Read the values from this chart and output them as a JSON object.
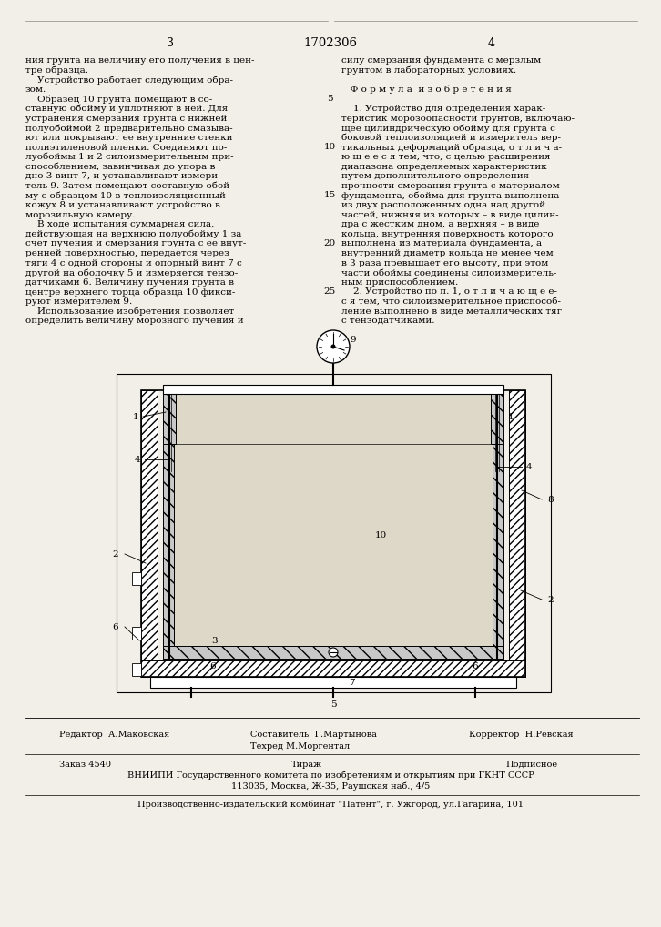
{
  "bg_color": "#f2efe8",
  "page_width": 7.07,
  "page_height": 10.0,
  "header": {
    "left_page_num": "3",
    "center_patent": "1702306",
    "right_page_num": "4"
  },
  "left_col_lines": [
    "ния грунта на величину его получения в цен-",
    "тре образца.",
    "    Устройство работает следующим обра-",
    "зом.",
    "    Образец 10 грунта помещают в со-",
    "ставную обойму и уплотняют в ней. Для",
    "устранения смерзания грунта с нижней",
    "полуобоймой 2 предварительно смазыва-",
    "ют или покрывают ее внутренние стенки",
    "полиэтиленовой пленки. Соединяют по-",
    "луобоймы 1 и 2 силоизмерительным при-",
    "способлением, завинчивая до упора в",
    "дно 3 винт 7, и устанавливают измери-",
    "тель 9. Затем помещают составную обой-",
    "му с образцом 10 в теплоизоляционный",
    "кожух 8 и устанавливают устройство в",
    "морозильную камеру.",
    "    В ходе испытания суммарная сила,",
    "действующая на верхнюю полуобойму 1 за",
    "счет пучения и смерзания грунта с ее внут-",
    "ренней поверхностью, передается через",
    "тяги 4 с одной стороны и опорный винт 7 с",
    "другой на оболочку 5 и измеряется тензо-",
    "датчиками 6. Величину пучения грунта в",
    "центре верхнего торца образца 10 фикси-",
    "руют измерителем 9.",
    "    Использование изобретения позволяет",
    "определить величину морозного пучения и"
  ],
  "line_numbers": [
    5,
    10,
    15,
    20,
    25
  ],
  "line_number_rows": [
    4,
    9,
    14,
    19,
    24
  ],
  "right_col_lines": [
    "силу смерзания фундамента с мерзлым",
    "грунтом в лабораторных условиях.",
    "",
    "   Ф о р м у л а  и з о б р е т е н и я",
    "",
    "    1. Устройство для определения харак-",
    "теристик морозоопасности грунтов, включаю-",
    "щее цилиндрическую обойму для грунта с",
    "боковой теплоизоляцией и измеритель вер-",
    "тикальных деформаций образца, о т л и ч а-",
    "ю щ е е с я тем, что, с целью расширения",
    "диапазона определяемых характеристик",
    "путем дополнительного определения",
    "прочности смерзания грунта с материалом",
    "фундамента, обойма для грунта выполнена",
    "из двух расположенных одна над другой",
    "частей, нижняя из которых – в виде цилин-",
    "дра с жестким дном, а верхняя – в виде",
    "кольца, внутренняя поверхность которого",
    "выполнена из материала фундамента, а",
    "внутренний диаметр кольца не менее чем",
    "в 3 раза превышает его высоту, при этом",
    "части обоймы соединены силоизмеритель-",
    "ным приспособлением.",
    "    2. Устройство по п. 1, о т л и ч а ю щ е е-",
    "с я тем, что силоизмерительное приспособ-",
    "ление выполнено в виде металлических тяг",
    "с тензодатчиками."
  ],
  "footer": {
    "editor": "Редактор  А.Маковская",
    "composer_title": "Составитель  Г.Мартынова",
    "techred": "Техред М.Моргентал",
    "corrector": "Корректор  Н.Ревская",
    "order": "Заказ 4540",
    "tirazh": "Тираж",
    "podp": "Подписное",
    "vniip": "ВНИИПИ Государственного комитета по изобретениям и открытиям при ГКНТ СССР",
    "address": "113035, Москва, Ж-35, Раушская наб., 4/5",
    "printer": "Производственно-издательский комбинат \"Патент\", г. Ужгород, ул.Гагарина, 101"
  }
}
